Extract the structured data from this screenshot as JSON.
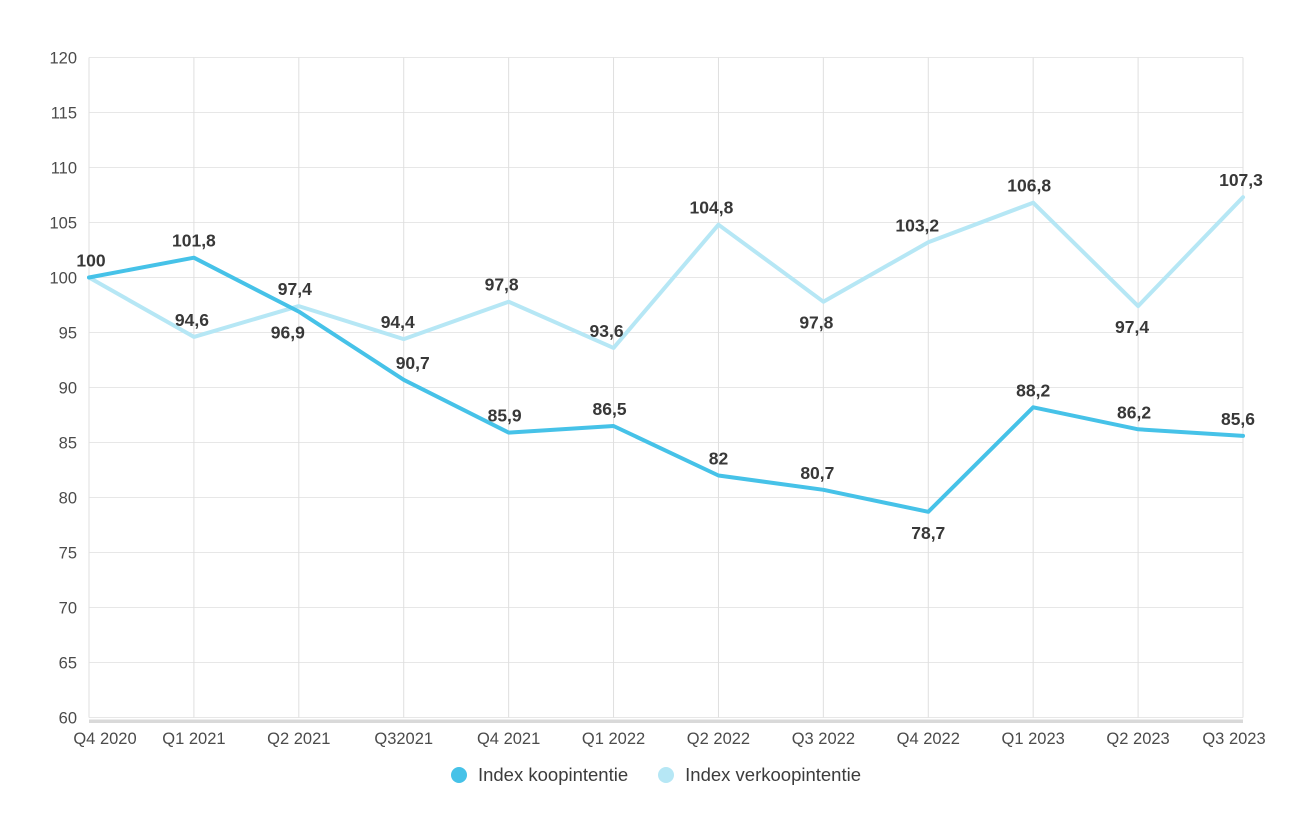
{
  "chart_data": {
    "type": "line",
    "title": "",
    "categories": [
      "Q4 2020",
      "Q1 2021",
      "Q2 2021",
      "Q32021",
      "Q4 2021",
      "Q1 2022",
      "Q2 2022",
      "Q3 2022",
      "Q4 2022",
      "Q1 2023",
      "Q2 2023",
      "Q3 2023"
    ],
    "ylim": [
      60,
      120
    ],
    "yticks": [
      120,
      115,
      110,
      105,
      100,
      95,
      90,
      85,
      80,
      75,
      70,
      65,
      60
    ],
    "grid": true,
    "legend_position": "bottom",
    "decimal_separator": ",",
    "series": [
      {
        "name": "Index koopintentie",
        "color": "#46C2E8",
        "values": [
          100,
          101.8,
          96.9,
          90.7,
          85.9,
          86.5,
          82,
          80.7,
          78.7,
          88.2,
          86.2,
          85.6
        ],
        "labels": [
          "100",
          "101,8",
          "96,9",
          "90,7",
          "85,9",
          "86,5",
          "82",
          "80,7",
          "78,7",
          "88,2",
          "86,2",
          "85,6"
        ],
        "label_side": [
          "above",
          "above",
          "below",
          "above",
          "above",
          "above",
          "above",
          "above",
          "below",
          "above",
          "above",
          "above"
        ],
        "label_dx": [
          2,
          0,
          -11,
          9,
          -4,
          -4,
          0,
          -6,
          0,
          0,
          -4,
          -5
        ]
      },
      {
        "name": "Index verkoopintentie",
        "color": "#B6E7F5",
        "values": [
          100,
          94.6,
          97.4,
          94.4,
          97.8,
          93.6,
          104.8,
          97.8,
          103.2,
          106.8,
          97.4,
          107.3
        ],
        "labels": [
          "",
          "94,6",
          "97,4",
          "94,4",
          "97,8",
          "93,6",
          "104,8",
          "97,8",
          "103,2",
          "106,8",
          "97,4",
          "107,3"
        ],
        "label_side": [
          "none",
          "above",
          "above",
          "above",
          "above",
          "above",
          "above",
          "below",
          "above",
          "above",
          "below",
          "above"
        ],
        "label_dx": [
          0,
          -2,
          -4,
          -6,
          -7,
          -7,
          -7,
          -7,
          -11,
          -4,
          -6,
          -2
        ]
      }
    ],
    "colors": {
      "h_gridline": "#e7e7e7",
      "v_gridline": "#dfdfdf",
      "x_axis_bar": "#d9d9d9",
      "tick_label": "#4b4b4b",
      "data_label": "#383838",
      "legend_text": "#3c3c3c",
      "background": "#ffffff"
    }
  }
}
